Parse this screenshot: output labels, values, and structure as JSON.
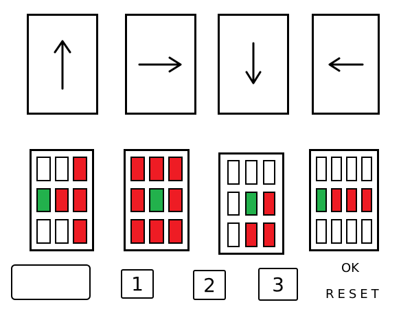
{
  "arrows": [
    {
      "name": "up",
      "glyph": "↑"
    },
    {
      "name": "right",
      "glyph": "→"
    },
    {
      "name": "down",
      "glyph": "↓"
    },
    {
      "name": "left",
      "glyph": "←"
    }
  ],
  "colors": {
    "empty": "#ffffff",
    "red": "#ee1c24",
    "green": "#22b14c",
    "border": "#000000"
  },
  "patterns": [
    {
      "rows": [
        [
          "empty",
          "empty",
          "red"
        ],
        [
          "green",
          "red",
          "red"
        ],
        [
          "empty",
          "empty",
          "red"
        ]
      ]
    },
    {
      "rows": [
        [
          "red",
          "red",
          "red"
        ],
        [
          "red",
          "green",
          "red"
        ],
        [
          "red",
          "red",
          "red"
        ]
      ]
    },
    {
      "rows": [
        [
          "empty",
          "empty",
          "empty"
        ],
        [
          "empty",
          "green",
          "red"
        ],
        [
          "empty",
          "red",
          "red"
        ]
      ]
    },
    {
      "rows": [
        [
          "empty",
          "empty",
          "empty",
          "empty"
        ],
        [
          "green",
          "red",
          "red",
          "red"
        ],
        [
          "empty",
          "empty",
          "empty",
          "empty"
        ]
      ]
    }
  ],
  "input_box": {
    "value": ""
  },
  "keypad": {
    "key1": "1",
    "key2": "2",
    "key3": "3"
  },
  "actions": {
    "ok_label": "OK",
    "reset_label": "RESET"
  }
}
